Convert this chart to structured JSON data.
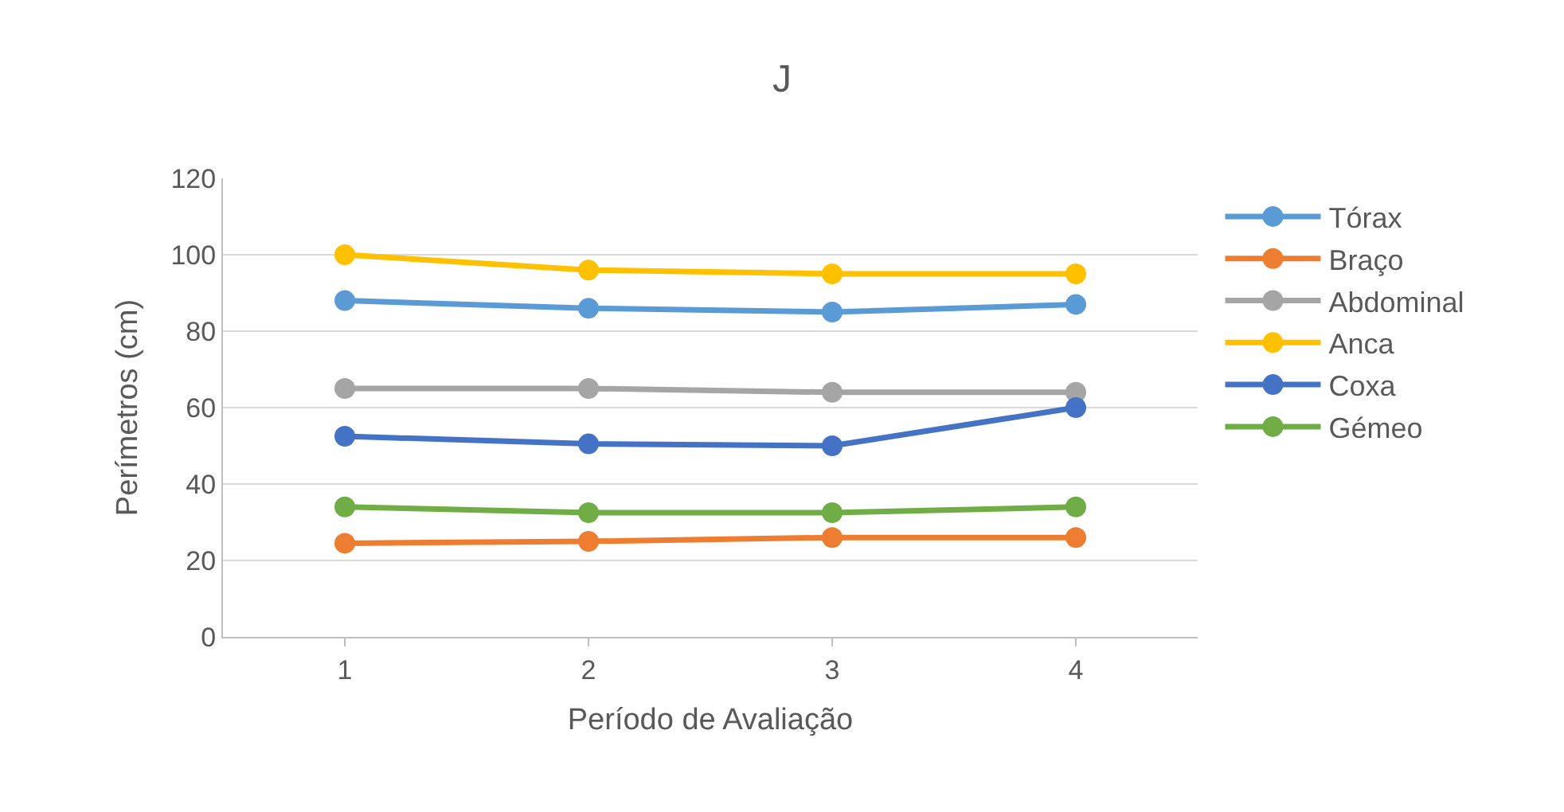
{
  "chart_data": {
    "type": "line",
    "title": "J",
    "xlabel": "Período de Avaliação",
    "ylabel": "Perímetros (cm)",
    "categories": [
      "1",
      "2",
      "3",
      "4"
    ],
    "series": [
      {
        "name": "Tórax",
        "color": "#5b9bd5",
        "values": [
          88,
          86,
          85,
          87
        ]
      },
      {
        "name": "Braço",
        "color": "#ed7d31",
        "values": [
          24.5,
          25,
          26,
          26
        ]
      },
      {
        "name": "Abdominal",
        "color": "#a5a5a5",
        "values": [
          65,
          65,
          64,
          64
        ]
      },
      {
        "name": "Anca",
        "color": "#ffc000",
        "values": [
          100,
          96,
          95,
          95
        ]
      },
      {
        "name": "Coxa",
        "color": "#4472c4",
        "values": [
          52.5,
          50.5,
          50,
          60
        ]
      },
      {
        "name": "Gémeo",
        "color": "#70ad47",
        "values": [
          34,
          32.5,
          32.5,
          34
        ]
      }
    ],
    "ylim": [
      0,
      120
    ],
    "yticks": [
      0,
      20,
      40,
      60,
      80,
      100,
      120
    ],
    "grid": "y",
    "legend": "right",
    "marker": "circle",
    "line_style": "solid"
  }
}
